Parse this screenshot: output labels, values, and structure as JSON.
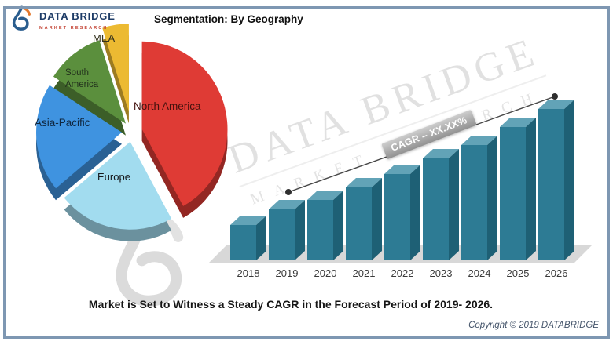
{
  "header": {
    "logo": {
      "brand": "DATA BRIDGE",
      "tagline": "MARKET RESEARCH"
    },
    "title": "Segmentation: By Geography"
  },
  "watermark": {
    "line1": "DATA BRIDGE",
    "line2": "MARKET RESEARCH"
  },
  "annotations": {
    "cagr_label": "CAGR – XX.XX%"
  },
  "footer": {
    "caption": "Market is Set to Witness a Steady CAGR in the Forecast Period of 2019- 2026.",
    "copyright": "Copyright © 2019 DATABRIDGE"
  },
  "icons": {
    "brand_logo": "data-bridge-b-swoosh"
  },
  "colors": {
    "frame_border": "#7e97b2",
    "bar_front": "#2d7b94",
    "bar_top": "#62a3b7",
    "bar_side": "#1e6075",
    "floor": "#d8d8d8"
  },
  "chart_data": [
    {
      "type": "pie",
      "title": "Segmentation: By Geography",
      "style": "3d-exploded",
      "labels": [
        "North America",
        "Europe",
        "Asia-Pacific",
        "South America",
        "MEA"
      ],
      "values_pct_estimated": [
        42,
        22,
        20,
        11,
        5
      ],
      "colors": [
        "#df3b35",
        "#a2dcef",
        "#3f93e0",
        "#5b8f3d",
        "#ecba32"
      ],
      "values_labeled": false,
      "legend_position": "labels-on-slices"
    },
    {
      "type": "bar",
      "style": "3d",
      "categories": [
        "2018",
        "2019",
        "2020",
        "2021",
        "2022",
        "2023",
        "2024",
        "2025",
        "2026"
      ],
      "relative_heights": [
        45,
        65,
        77,
        93,
        110,
        130,
        147,
        170,
        193
      ],
      "values_labeled": false,
      "bar_color": "#2d7b94",
      "xlabel": "",
      "ylabel": "",
      "grid": false,
      "trend": {
        "from_year": "2019",
        "to_year": "2026",
        "shape": "rising-line-with-end-dots"
      }
    }
  ]
}
